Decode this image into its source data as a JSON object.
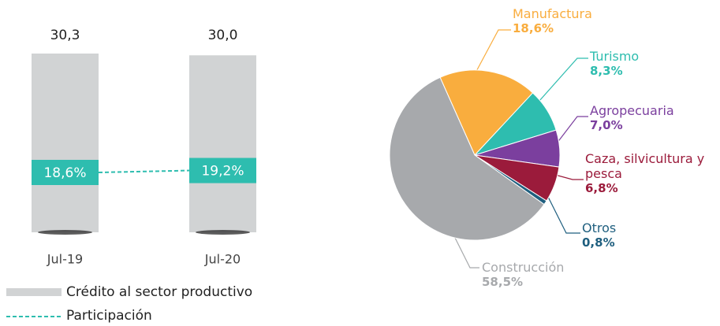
{
  "chart_data": [
    {
      "type": "bar",
      "categories": [
        "Jul-19",
        "Jul-20"
      ],
      "series": [
        {
          "name": "Crédito al sector productivo",
          "color": "#d1d3d4",
          "values": [
            30.3,
            30.0
          ],
          "value_labels": [
            "30,3",
            "30,0"
          ]
        },
        {
          "name": "Participación",
          "color": "#2ebdaf",
          "values": [
            18.6,
            19.2
          ],
          "value_labels": [
            "18,6%",
            "19,2%"
          ]
        }
      ]
    },
    {
      "type": "pie",
      "categories": [
        "Manufactura",
        "Turismo",
        "Agropecuaria",
        "Caza, silvicultura y pesca",
        "Otros",
        "Construcción"
      ],
      "values": [
        18.6,
        8.3,
        7.0,
        6.8,
        0.8,
        58.5
      ],
      "value_labels": [
        "18,6%",
        "8,3%",
        "7,0%",
        "6,8%",
        "0,8%",
        "58,5%"
      ],
      "colors": [
        "#f9ad3e",
        "#2ebdaf",
        "#7b3f9e",
        "#9b1b3b",
        "#1f5f7f",
        "#a7a9ac"
      ]
    }
  ]
}
